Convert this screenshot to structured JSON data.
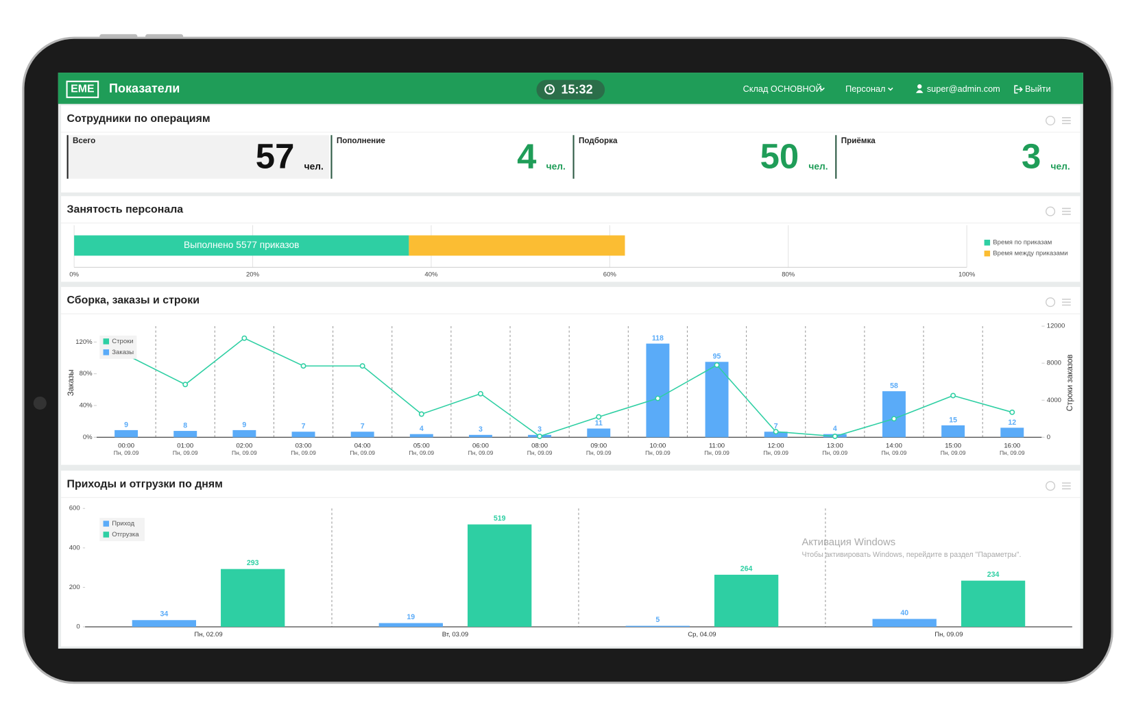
{
  "header": {
    "logo": "EME",
    "title": "Показатели",
    "time": "15:32",
    "warehouse": "Склад ОСНОВНОЙ",
    "staff": "Персонал",
    "user": "super@admin.com",
    "logout": "Выйти"
  },
  "kpi": {
    "title": "Сотрудники по операциям",
    "cards": [
      {
        "label": "Всего",
        "value": 57,
        "unit": "чел."
      },
      {
        "label": "Пополнение",
        "value": 4,
        "unit": "чел."
      },
      {
        "label": "Подборка",
        "value": 50,
        "unit": "чел."
      },
      {
        "label": "Приёмка",
        "value": 3,
        "unit": "чел."
      }
    ]
  },
  "chart_data": [
    {
      "type": "hbar",
      "stacked": true,
      "title": "Занятость персонала",
      "annotation": "Выполнено 5577 приказов",
      "series": [
        {
          "name": "Время по приказам",
          "color": "#2ecfa3",
          "values": [
            37.5
          ]
        },
        {
          "name": "Время между приказами",
          "color": "#fbbd33",
          "values": [
            24.2
          ]
        }
      ],
      "xlim": [
        0,
        100
      ],
      "xticks": [
        {
          "value": 0,
          "label": "0%"
        },
        {
          "value": 20,
          "label": "20%"
        },
        {
          "value": 40,
          "label": "40%"
        },
        {
          "value": 60,
          "label": "60%"
        },
        {
          "value": 80,
          "label": "80%"
        },
        {
          "value": 100,
          "label": "100%"
        }
      ],
      "grid": true,
      "legend": "right"
    },
    {
      "type": "combo",
      "title": "Сборка, заказы и строки",
      "ylabel": "Заказы",
      "y2label": "Строки заказов",
      "categories": [
        [
          "00:00",
          "Пн, 09.09"
        ],
        [
          "01:00",
          "Пн, 09.09"
        ],
        [
          "02:00",
          "Пн, 09.09"
        ],
        [
          "03:00",
          "Пн, 09.09"
        ],
        [
          "04:00",
          "Пн, 09.09"
        ],
        [
          "05:00",
          "Пн, 09.09"
        ],
        [
          "06:00",
          "Пн, 09.09"
        ],
        [
          "08:00",
          "Пн, 09.09"
        ],
        [
          "09:00",
          "Пн, 09.09"
        ],
        [
          "10:00",
          "Пн, 09.09"
        ],
        [
          "11:00",
          "Пн, 09.09"
        ],
        [
          "12:00",
          "Пн, 09.09"
        ],
        [
          "13:00",
          "Пн, 09.09"
        ],
        [
          "14:00",
          "Пн, 09.09"
        ],
        [
          "15:00",
          "Пн, 09.09"
        ],
        [
          "16:00",
          "Пн, 09.09"
        ]
      ],
      "series": [
        {
          "name": "Строки",
          "type": "line",
          "axis": "y2",
          "color": "#2ecfa3",
          "values": [
            8900,
            5700,
            10700,
            7700,
            7700,
            2500,
            4700,
            100,
            2200,
            4200,
            7800,
            600,
            100,
            2000,
            4500,
            2700
          ]
        },
        {
          "name": "Заказы",
          "type": "bar",
          "color": "#5aabf8",
          "values": [
            9,
            8,
            9,
            7,
            7,
            4,
            3,
            3,
            11,
            118,
            95,
            7,
            4,
            58,
            15,
            12
          ]
        }
      ],
      "ylim": [
        0,
        140
      ],
      "yticks": [
        {
          "value": 0,
          "label": "0%"
        },
        {
          "value": 40,
          "label": "40%"
        },
        {
          "value": 80,
          "label": "80%"
        },
        {
          "value": 120,
          "label": "120%"
        }
      ],
      "y2lim": [
        0,
        12000
      ],
      "y2ticks": [
        0,
        4000,
        8000,
        12000
      ],
      "legend": "upper left"
    },
    {
      "type": "bar",
      "title": "Приходы и отгрузки по дням",
      "categories": [
        "Пн, 02.09",
        "Вт, 03.09",
        "Ср, 04.09",
        "Пн, 09.09"
      ],
      "series": [
        {
          "name": "Приход",
          "color": "#5aabf8",
          "values": [
            34,
            19,
            5,
            40
          ]
        },
        {
          "name": "Отгрузка",
          "color": "#2ecfa3",
          "values": [
            293,
            519,
            264,
            234
          ]
        }
      ],
      "ylim": [
        0,
        600
      ],
      "yticks": [
        0,
        200,
        400,
        600
      ],
      "legend": "upper left"
    }
  ],
  "watermark": {
    "title": "Активация Windows",
    "text": "Чтобы активировать Windows, перейдите в раздел \"Параметры\"."
  }
}
